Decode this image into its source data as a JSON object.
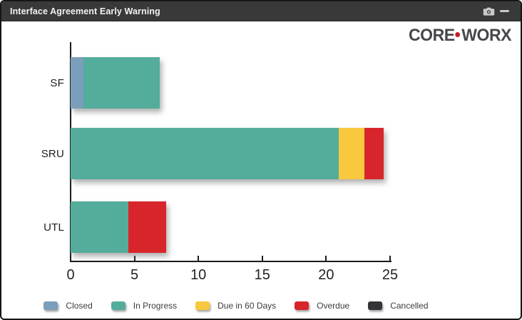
{
  "window": {
    "title": "Interface Agreement Early Warning",
    "titlebar_icons": [
      "camera-icon",
      "minimize-icon"
    ],
    "titlebar_bg": "#3a3939",
    "icon_color": "#c9c9c9"
  },
  "logo": {
    "text_left": "CORE",
    "text_right": "WORX",
    "separator": "dot",
    "text_color": "#47474b",
    "dot_color": "#c41a21"
  },
  "chart_data": {
    "type": "bar",
    "orientation": "horizontal",
    "title": "Interface Agreement Early Warning",
    "categories": [
      "SF",
      "SRU",
      "UTL"
    ],
    "series": [
      {
        "name": "Closed",
        "color": "#7b9eba",
        "values": [
          1,
          0,
          0
        ]
      },
      {
        "name": "In Progress",
        "color": "#54ad9a",
        "values": [
          6,
          21,
          4.5
        ]
      },
      {
        "name": "Due in 60 Days",
        "color": "#f8c83f",
        "values": [
          0,
          2,
          0
        ]
      },
      {
        "name": "Overdue",
        "color": "#d8252c",
        "values": [
          0,
          1.5,
          3
        ]
      },
      {
        "name": "Cancelled",
        "color": "#333338",
        "values": [
          0,
          0,
          0
        ]
      }
    ],
    "xlim": [
      0,
      25
    ],
    "xticks": [
      0,
      5,
      10,
      15,
      20,
      25
    ],
    "grid": false,
    "legend_position": "bottom"
  }
}
